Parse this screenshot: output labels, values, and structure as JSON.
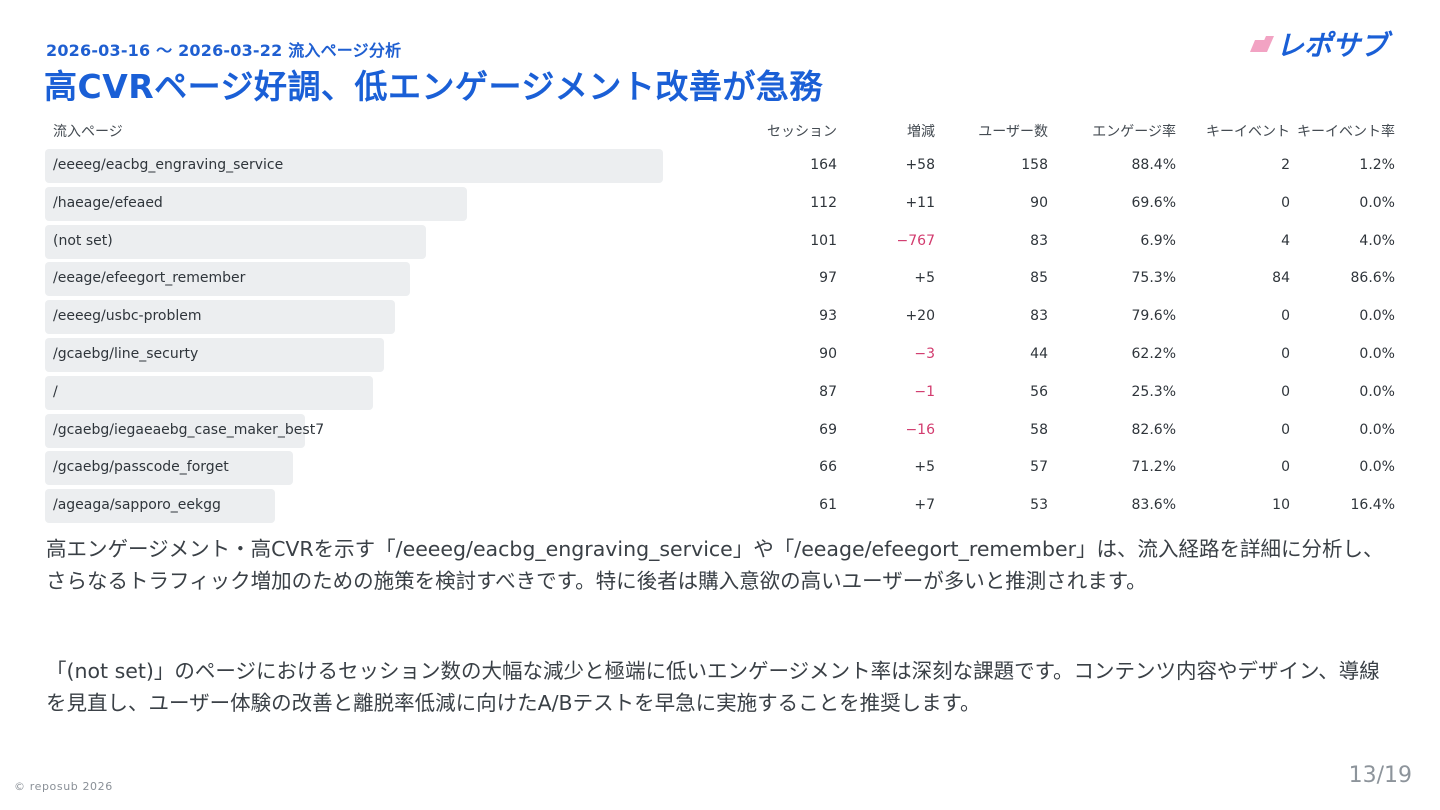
{
  "header": {
    "subtitle": "2026-03-16 ～ 2026-03-22 流入ページ分析",
    "title": "高CVRページ好調、低エンゲージメント改善が急務",
    "logo_text": "レポサブ",
    "logo_colors": [
      "#f2a3c3",
      "#1a5fd6"
    ]
  },
  "table": {
    "headers": [
      "流入ページ",
      "セッション",
      "増減",
      "ユーザー数",
      "エンゲージ率",
      "キーイベント",
      "キーイベント率"
    ],
    "rows": [
      {
        "page": "/eeeeg/eacbg_engraving_service",
        "sessions": "164",
        "change": "+58",
        "users": "158",
        "engagement": "88.4%",
        "key_events": "2",
        "key_event_rate": "1.2%",
        "bar": 1.0,
        "negative": false
      },
      {
        "page": "/haeage/efeaed",
        "sessions": "112",
        "change": "+11",
        "users": "90",
        "engagement": "69.6%",
        "key_events": "0",
        "key_event_rate": "0.0%",
        "bar": 0.683,
        "negative": false
      },
      {
        "page": "(not set)",
        "sessions": "101",
        "change": "−767",
        "users": "83",
        "engagement": "6.9%",
        "key_events": "4",
        "key_event_rate": "4.0%",
        "bar": 0.616,
        "negative": true
      },
      {
        "page": "/eeage/efeegort_remember",
        "sessions": "97",
        "change": "+5",
        "users": "85",
        "engagement": "75.3%",
        "key_events": "84",
        "key_event_rate": "86.6%",
        "bar": 0.591,
        "negative": false
      },
      {
        "page": "/eeeeg/usbc-problem",
        "sessions": "93",
        "change": "+20",
        "users": "83",
        "engagement": "79.6%",
        "key_events": "0",
        "key_event_rate": "0.0%",
        "bar": 0.567,
        "negative": false
      },
      {
        "page": "/gcaebg/line_securty",
        "sessions": "90",
        "change": "−3",
        "users": "44",
        "engagement": "62.2%",
        "key_events": "0",
        "key_event_rate": "0.0%",
        "bar": 0.549,
        "negative": true
      },
      {
        "page": "/",
        "sessions": "87",
        "change": "−1",
        "users": "56",
        "engagement": "25.3%",
        "key_events": "0",
        "key_event_rate": "0.0%",
        "bar": 0.53,
        "negative": true
      },
      {
        "page": "/gcaebg/iegaeaebg_case_maker_best7",
        "sessions": "69",
        "change": "−16",
        "users": "58",
        "engagement": "82.6%",
        "key_events": "0",
        "key_event_rate": "0.0%",
        "bar": 0.421,
        "negative": true
      },
      {
        "page": "/gcaebg/passcode_forget",
        "sessions": "66",
        "change": "+5",
        "users": "57",
        "engagement": "71.2%",
        "key_events": "0",
        "key_event_rate": "0.0%",
        "bar": 0.402,
        "negative": false
      },
      {
        "page": "/ageaga/sapporo_eekgg",
        "sessions": "61",
        "change": "+7",
        "users": "53",
        "engagement": "83.6%",
        "key_events": "10",
        "key_event_rate": "16.4%",
        "bar": 0.372,
        "negative": false
      }
    ]
  },
  "paragraphs": [
    "高エンゲージメント・高CVRを示す「/eeeeg/eacbg_engraving_service」や「/eeage/efeegort_remember」は、流入経路を詳細に分析し、さらなるトラフィック増加のための施策を検討すべきです。特に後者は購入意欲の高いユーザーが多いと推測されます。",
    "「(not set)」のページにおけるセッション数の大幅な減少と極端に低いエンゲージメント率は深刻な課題です。コンテンツ内容やデザイン、導線を見直し、ユーザー体験の改善と離脱率低減に向けたA/Bテストを早急に実施することを推奨します。"
  ],
  "footer": {
    "copyright": "© reposub 2026",
    "page": "13/19"
  }
}
